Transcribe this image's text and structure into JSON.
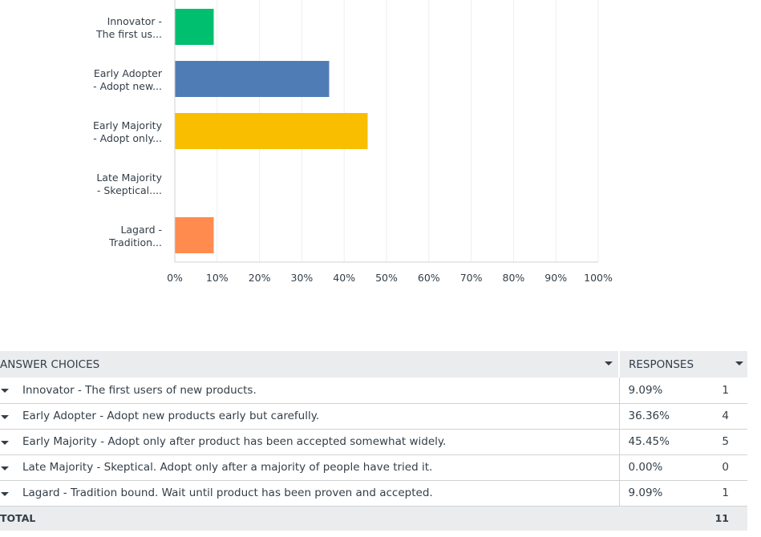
{
  "chart_data": {
    "type": "bar",
    "orientation": "horizontal",
    "categories": [
      [
        "Innovator -",
        "The first us..."
      ],
      [
        "Early Adopter",
        "- Adopt new..."
      ],
      [
        "Early Majority",
        "- Adopt only..."
      ],
      [
        "Late Majority",
        "- Skeptical...."
      ],
      [
        "Lagard -",
        "Tradition..."
      ]
    ],
    "values": [
      9.09,
      36.36,
      45.45,
      0.0,
      9.09
    ],
    "colors": [
      "#00bf6f",
      "#507cb6",
      "#f9be00",
      "#6bc8cd",
      "#ff8b4f"
    ],
    "xlim": [
      0,
      100
    ],
    "xticks": [
      "0%",
      "10%",
      "20%",
      "30%",
      "40%",
      "50%",
      "60%",
      "70%",
      "80%",
      "90%",
      "100%"
    ],
    "grid": true
  },
  "table": {
    "header_answer": "ANSWER CHOICES",
    "header_responses": "RESPONSES",
    "rows": [
      {
        "answer": "Innovator - The first users of new products.",
        "percent": "9.09%",
        "count": "1"
      },
      {
        "answer": "Early Adopter - Adopt new products early but carefully.",
        "percent": "36.36%",
        "count": "4"
      },
      {
        "answer": "Early Majority - Adopt only after product has been accepted somewhat widely.",
        "percent": "45.45%",
        "count": "5"
      },
      {
        "answer": "Late Majority - Skeptical. Adopt only after a majority of people have tried it.",
        "percent": "0.00%",
        "count": "0"
      },
      {
        "answer": "Lagard - Tradition bound. Wait until product has been proven and accepted.",
        "percent": "9.09%",
        "count": "1"
      }
    ],
    "total_label": "TOTAL",
    "total_count": "11"
  }
}
